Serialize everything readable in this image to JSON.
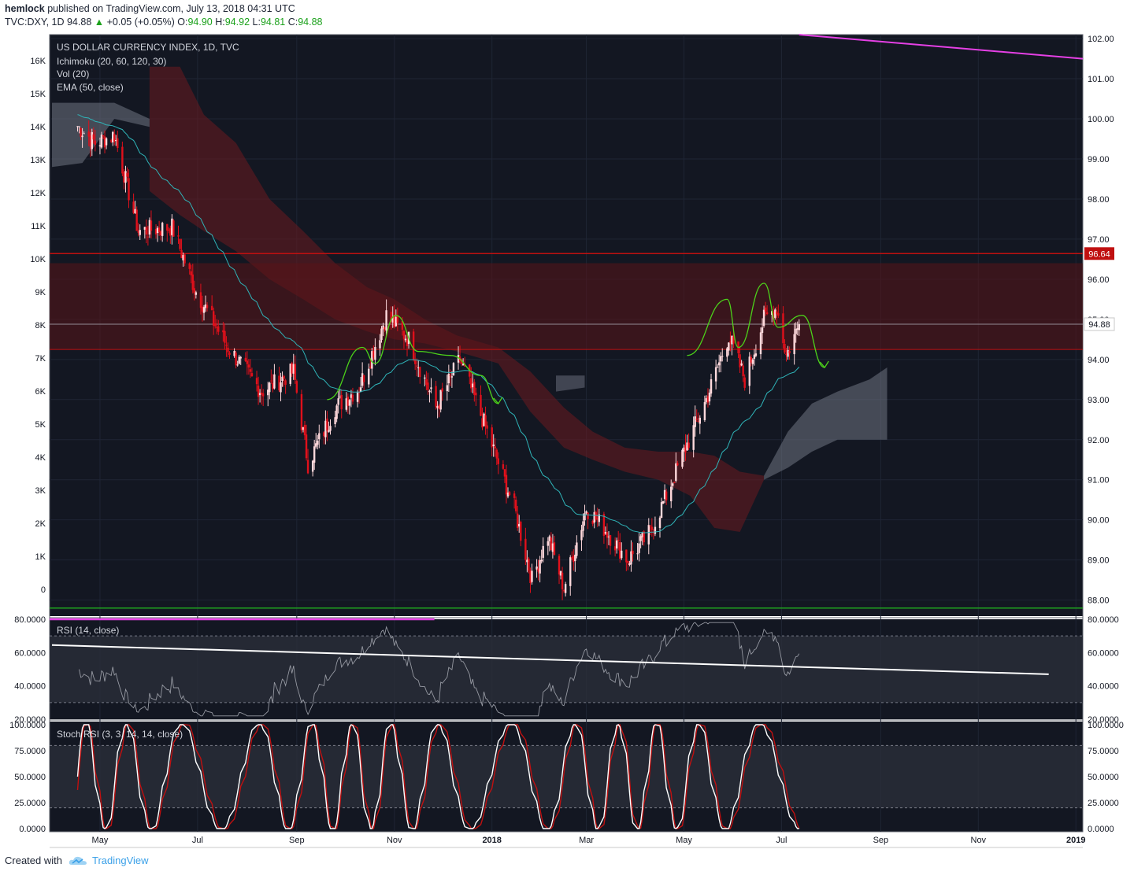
{
  "header": {
    "author": "hemlock",
    "published": "published on TradingView.com, July 13, 2018 04:31 UTC",
    "symbol": "TVC:DXY, 1D",
    "price": "94.88",
    "change": "+0.05 (+0.05%)",
    "open_label": "O:",
    "open": "94.90",
    "high_label": "H:",
    "high": "94.92",
    "low_label": "L:",
    "low": "94.81",
    "close_label": "C:",
    "close": "94.88"
  },
  "footer": {
    "created_with": "Created with",
    "brand": "TradingView"
  },
  "colors": {
    "background": "#131722",
    "up_candle": "#ffd9dc",
    "down_candle": "#e0101b",
    "ema": "#2fb4b8",
    "pattern": "#4cd21a",
    "trend_magenta": "#e540e5",
    "resistance": "#c01010",
    "rsi_trend": "#ffffff",
    "stoch_k": "#ffffff",
    "stoch_d": "#c01010"
  },
  "chart_data": [
    {
      "type": "candlestick",
      "title": "US DOLLAR CURRENCY INDEX, 1D, TVC",
      "indicators": [
        "Ichimoku (20, 60, 120, 30)",
        "Vol (20)",
        "EMA (50, close)"
      ],
      "price_axis": {
        "ticks": [
          "102.00",
          "101.00",
          "100.00",
          "99.00",
          "98.00",
          "97.00",
          "96.00",
          "95.00",
          "94.00",
          "93.00",
          "92.00",
          "91.00",
          "90.00",
          "89.00",
          "88.00"
        ],
        "ylim": [
          87.6,
          102.1
        ]
      },
      "volume_axis": {
        "ticks": [
          "16K",
          "15K",
          "14K",
          "13K",
          "12K",
          "11K",
          "10K",
          "9K",
          "8K",
          "7K",
          "6K",
          "5K",
          "4K",
          "3K",
          "2K",
          "1K",
          "0"
        ]
      },
      "x_axis": {
        "ticks": [
          "May",
          "Jul",
          "Sep",
          "Nov",
          "2018",
          "Mar",
          "May",
          "Jul",
          "Sep",
          "Nov",
          "2019"
        ]
      },
      "last_price": "94.88",
      "level_label": "96.64",
      "levels": {
        "resistance_line": 96.64,
        "zone_top": 96.4,
        "zone_bottom": 94.25
      },
      "key_points": [
        {
          "date": "2017-04-15",
          "price": 99.9
        },
        {
          "date": "2017-04-28",
          "price": 99.4
        },
        {
          "date": "2017-05-10",
          "price": 99.6
        },
        {
          "date": "2017-05-25",
          "price": 97.2
        },
        {
          "date": "2017-06-15",
          "price": 97.3
        },
        {
          "date": "2017-06-30",
          "price": 95.7
        },
        {
          "date": "2017-07-20",
          "price": 94.3
        },
        {
          "date": "2017-08-10",
          "price": 93.2
        },
        {
          "date": "2017-08-30",
          "price": 93.7
        },
        {
          "date": "2017-09-08",
          "price": 91.4
        },
        {
          "date": "2017-09-25",
          "price": 92.8
        },
        {
          "date": "2017-10-10",
          "price": 93.3
        },
        {
          "date": "2017-10-27",
          "price": 95.1
        },
        {
          "date": "2017-11-10",
          "price": 94.5
        },
        {
          "date": "2017-11-27",
          "price": 92.8
        },
        {
          "date": "2017-12-12",
          "price": 94.0
        },
        {
          "date": "2017-12-29",
          "price": 92.2
        },
        {
          "date": "2018-01-15",
          "price": 90.3
        },
        {
          "date": "2018-01-26",
          "price": 88.5
        },
        {
          "date": "2018-02-05",
          "price": 89.6
        },
        {
          "date": "2018-02-15",
          "price": 88.3
        },
        {
          "date": "2018-03-01",
          "price": 90.3
        },
        {
          "date": "2018-03-12",
          "price": 89.8
        },
        {
          "date": "2018-03-27",
          "price": 89.0
        },
        {
          "date": "2018-04-10",
          "price": 89.7
        },
        {
          "date": "2018-04-20",
          "price": 90.6
        },
        {
          "date": "2018-05-01",
          "price": 91.7
        },
        {
          "date": "2018-05-15",
          "price": 93.0
        },
        {
          "date": "2018-05-29",
          "price": 94.6
        },
        {
          "date": "2018-06-08",
          "price": 93.5
        },
        {
          "date": "2018-06-20",
          "price": 95.0
        },
        {
          "date": "2018-06-28",
          "price": 95.3
        },
        {
          "date": "2018-07-04",
          "price": 94.1
        },
        {
          "date": "2018-07-12",
          "price": 94.88
        }
      ]
    },
    {
      "type": "line",
      "title": "RSI (14, close)",
      "y_ticks": [
        "80.0000",
        "60.0000",
        "40.0000",
        "20.0000"
      ],
      "ylim": [
        20,
        80
      ],
      "band": [
        30,
        70
      ],
      "trendline": [
        {
          "date": "2017-04-01",
          "value": 64.5
        },
        {
          "date": "2018-12-15",
          "value": 47
        }
      ]
    },
    {
      "type": "line",
      "title": "Stoch RSI (3, 3, 14, 14, close)",
      "y_ticks": [
        "100.0000",
        "75.0000",
        "50.0000",
        "25.0000",
        "0.0000"
      ],
      "ylim": [
        -3,
        103
      ],
      "band": [
        20,
        80
      ]
    }
  ]
}
